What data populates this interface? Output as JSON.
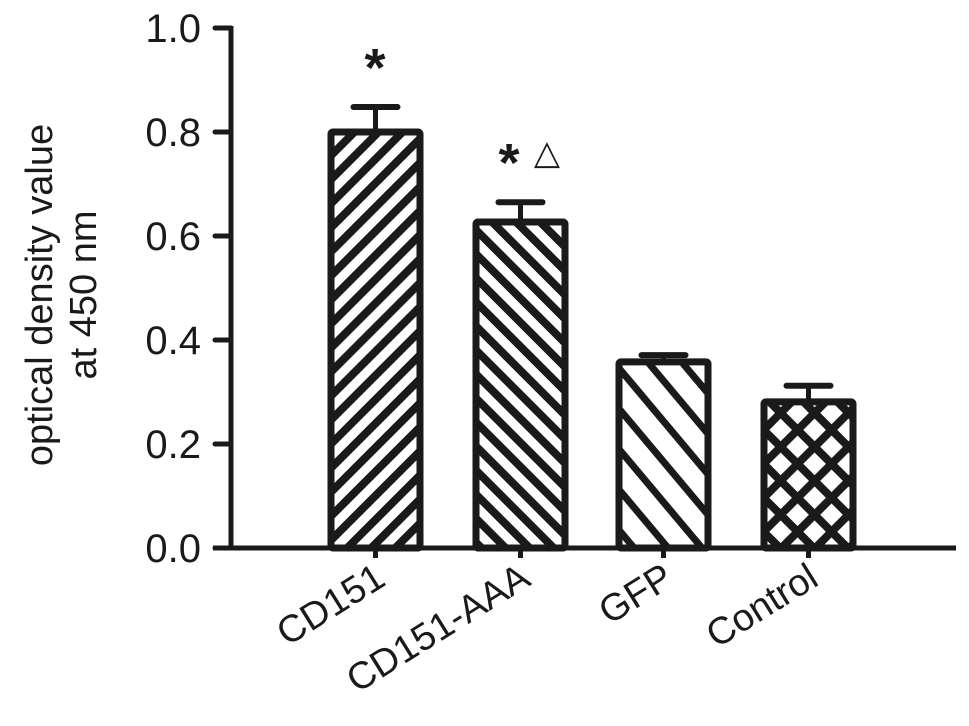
{
  "chart_data": {
    "type": "bar",
    "title": "",
    "xlabel": "",
    "ylabel": "optical density value at 450 nm",
    "ylabel_lines": [
      "optical density value",
      "at 450 nm"
    ],
    "categories": [
      "CD151",
      "CD151-AAA",
      "GFP",
      "Control"
    ],
    "values": [
      0.8,
      0.627,
      0.358,
      0.281
    ],
    "error": [
      0.048,
      0.038,
      0.013,
      0.031
    ],
    "ylim": [
      0.0,
      1.0
    ],
    "yticks": [
      0.0,
      0.2,
      0.4,
      0.6,
      0.8,
      1.0
    ],
    "ytick_labels": [
      "0.0",
      "0.2",
      "0.4",
      "0.6",
      "0.8",
      "1.0"
    ],
    "patterns": [
      "backslash-hatch",
      "slash-hatch-dense",
      "slash-hatch-wide",
      "crosshatch"
    ],
    "annotations": [
      {
        "category": "CD151",
        "text": "*"
      },
      {
        "category": "CD151-AAA",
        "text": "*",
        "extra": "△"
      }
    ],
    "grid": false,
    "legend": null,
    "colors": {
      "ink": "#1a1a1a",
      "background": "#ffffff"
    }
  }
}
